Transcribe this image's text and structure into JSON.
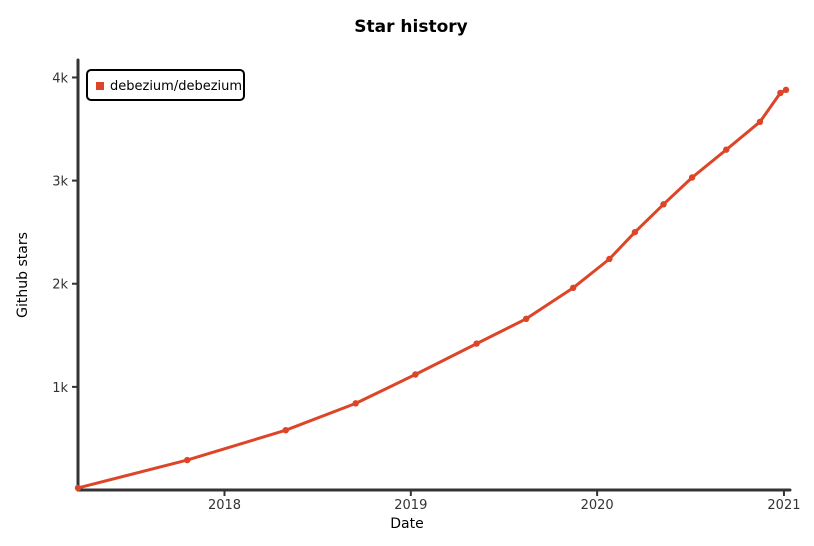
{
  "chart_data": {
    "type": "line",
    "title": "Star history",
    "xlabel": "Date",
    "ylabel": "Github stars",
    "x_ticks": [
      "2018",
      "2019",
      "2020",
      "2021"
    ],
    "y_ticks": [
      "1k",
      "2k",
      "3k",
      "4k"
    ],
    "xlim": [
      "2017-03-20",
      "2021-01-05"
    ],
    "ylim": [
      0,
      4150
    ],
    "legend_position": "top-left",
    "series": [
      {
        "name": "debezium/debezium",
        "color": "#dd4528",
        "points": [
          {
            "x": "2017-03-20",
            "y": 20
          },
          {
            "x": "2017-10-20",
            "y": 290
          },
          {
            "x": "2018-05-01",
            "y": 580
          },
          {
            "x": "2018-09-15",
            "y": 840
          },
          {
            "x": "2019-01-10",
            "y": 1120
          },
          {
            "x": "2019-05-10",
            "y": 1420
          },
          {
            "x": "2019-08-15",
            "y": 1660
          },
          {
            "x": "2019-11-15",
            "y": 1960
          },
          {
            "x": "2020-01-25",
            "y": 2240
          },
          {
            "x": "2020-03-15",
            "y": 2500
          },
          {
            "x": "2020-05-10",
            "y": 2770
          },
          {
            "x": "2020-07-05",
            "y": 3030
          },
          {
            "x": "2020-09-10",
            "y": 3300
          },
          {
            "x": "2020-11-15",
            "y": 3570
          },
          {
            "x": "2020-12-25",
            "y": 3850
          },
          {
            "x": "2021-01-05",
            "y": 3880
          }
        ]
      }
    ]
  }
}
